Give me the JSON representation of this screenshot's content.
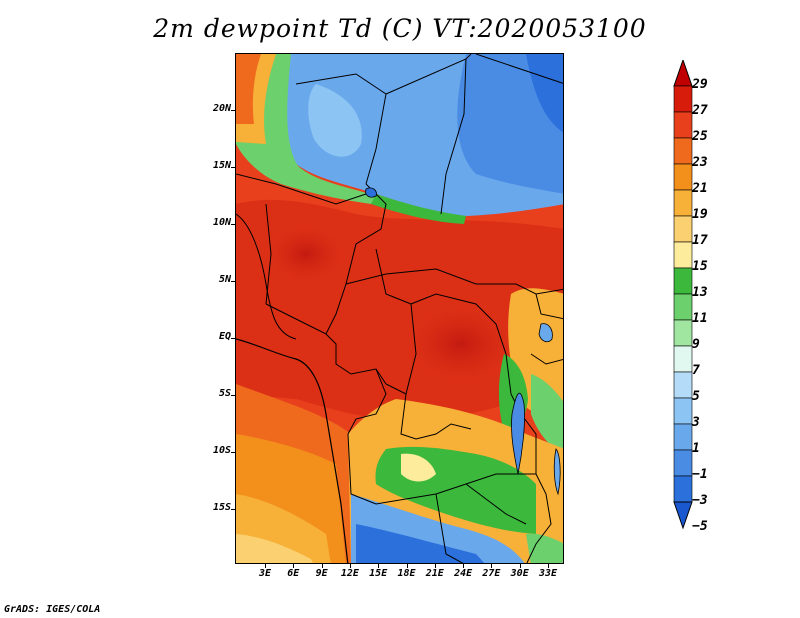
{
  "title": "2m dewpoint Td (C) VT:2020053100",
  "footer": "GrADS: IGES/COLA",
  "latitude_labels": [
    "20N",
    "15N",
    "10N",
    "5N",
    "EQ",
    "5S",
    "10S",
    "15S"
  ],
  "longitude_labels": [
    "3E",
    "6E",
    "9E",
    "12E",
    "15E",
    "18E",
    "21E",
    "24E",
    "27E",
    "30E",
    "33E"
  ],
  "colorbar": {
    "labels": [
      "29",
      "27",
      "25",
      "23",
      "21",
      "19",
      "17",
      "15",
      "13",
      "11",
      "9",
      "7",
      "5",
      "3",
      "1",
      "−1",
      "−3",
      "−5"
    ],
    "colors": [
      "#c00000",
      "#d81c0c",
      "#e8401c",
      "#ef6a1c",
      "#f3901c",
      "#f7b038",
      "#fbd070",
      "#fcec9c",
      "#3cb83c",
      "#6cd06c",
      "#a0e6a0",
      "#e0f8f0",
      "#b4dcf8",
      "#8cc4f4",
      "#6aa8ec",
      "#4a8ce4",
      "#2c70dc",
      "#1a58d0"
    ]
  }
}
